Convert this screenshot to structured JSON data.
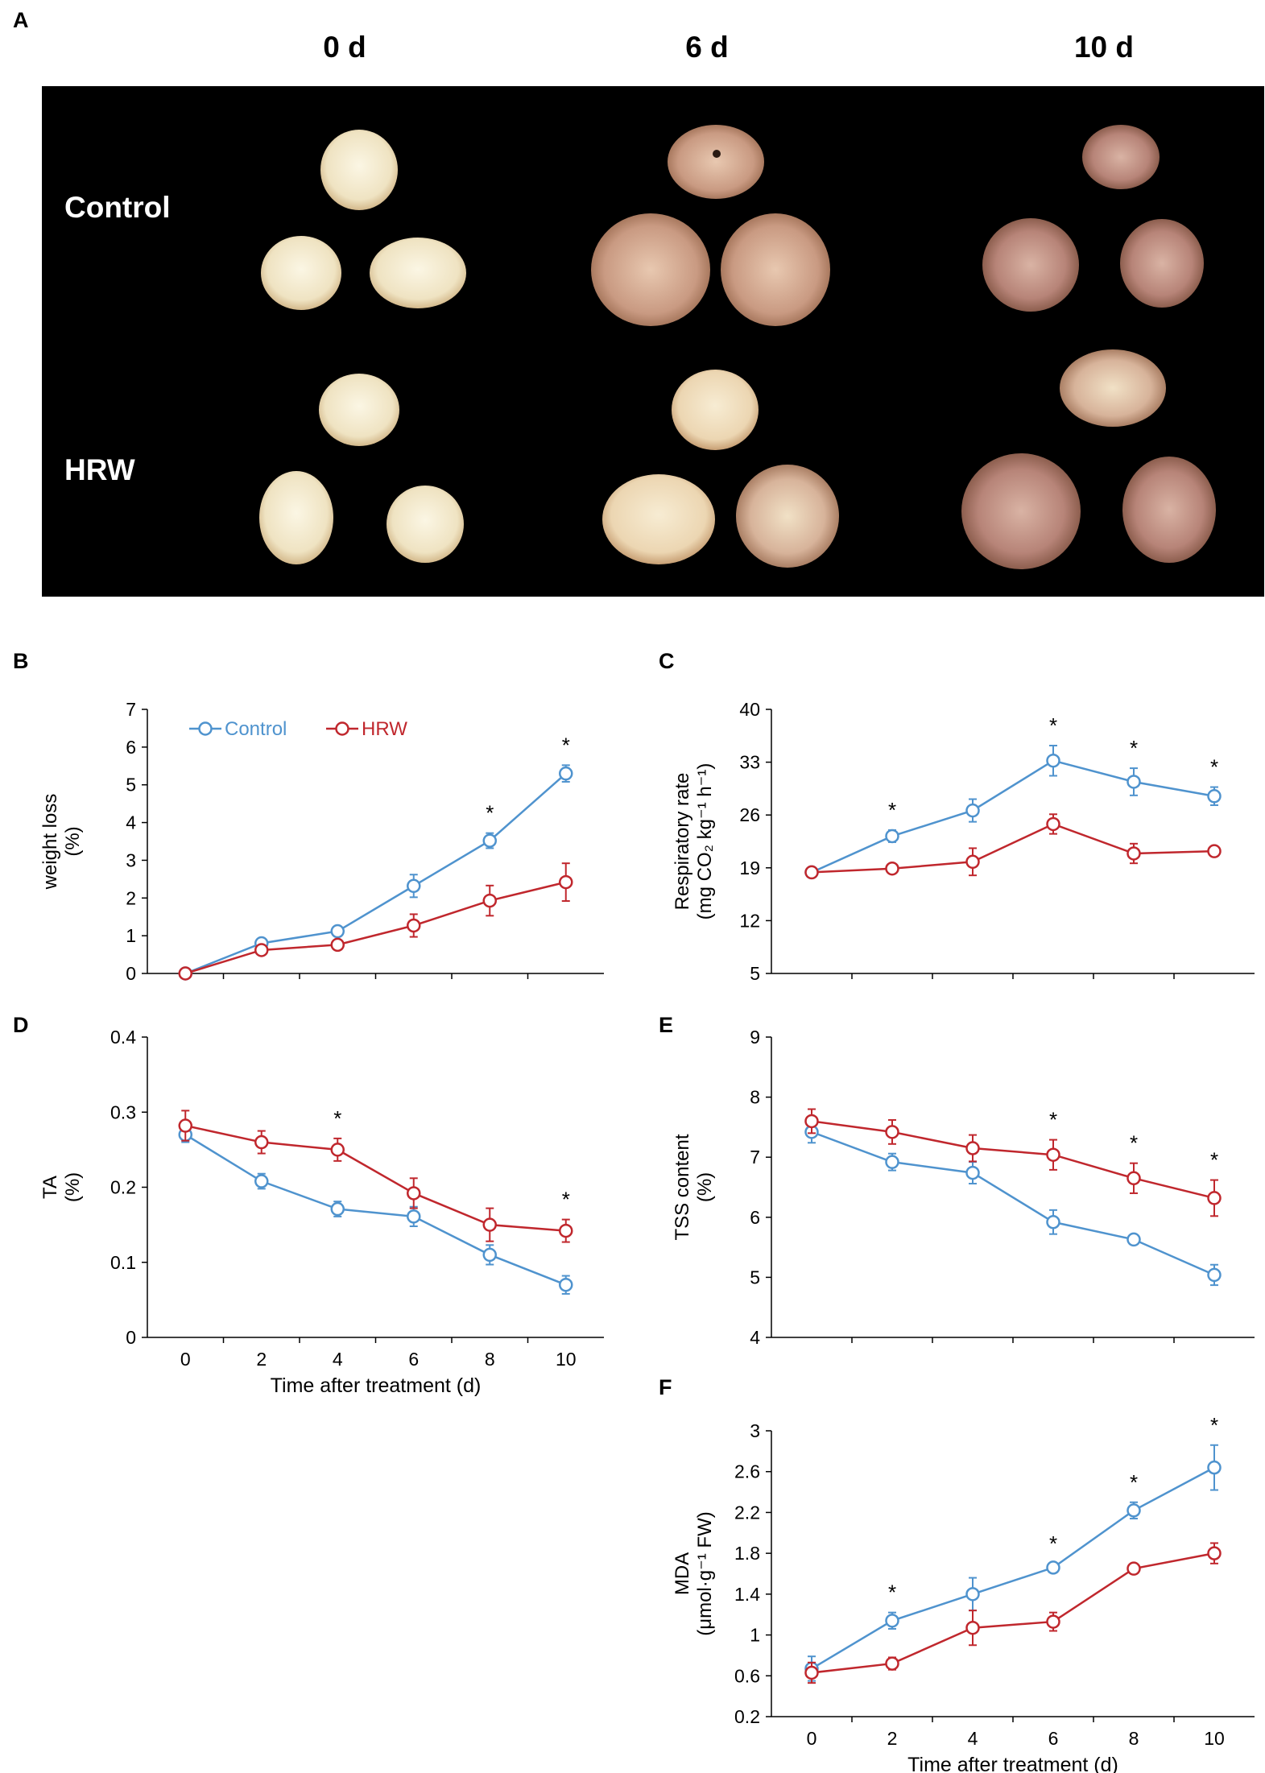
{
  "figure": {
    "panel_a": {
      "letter": "A",
      "column_labels": [
        "0 d",
        "6 d",
        "10 d"
      ],
      "row_labels": [
        "Control",
        "HRW"
      ]
    },
    "colors": {
      "control": "#4F93CE",
      "hrw": "#C0272D",
      "axis": "#000000",
      "photo_bg": "#000000"
    }
  },
  "chart_data": [
    {
      "panel": "B",
      "type": "line",
      "ylabel_lines": [
        "weight loss",
        "(%)"
      ],
      "xlabel": "",
      "show_x_tick_labels": false,
      "x": [
        0,
        2,
        4,
        6,
        8,
        10
      ],
      "xlim": [
        -1,
        11
      ],
      "ylim": [
        0,
        7
      ],
      "yticks": [
        0,
        1,
        2,
        3,
        4,
        5,
        6,
        7
      ],
      "ytick_labels": [
        "0",
        "1",
        "2",
        "3",
        "4",
        "5",
        "6",
        "7"
      ],
      "legend": {
        "placement": "top-left",
        "entries": [
          "Control",
          "HRW"
        ]
      },
      "series": [
        {
          "name": "Control",
          "values": [
            0,
            0.8,
            1.12,
            2.32,
            3.52,
            5.3
          ],
          "errors": [
            0,
            0.05,
            0.12,
            0.3,
            0.2,
            0.22
          ]
        },
        {
          "name": "HRW",
          "values": [
            0,
            0.62,
            0.76,
            1.27,
            1.93,
            2.42
          ],
          "errors": [
            0,
            0.05,
            0.05,
            0.3,
            0.4,
            0.5
          ]
        }
      ],
      "significance": [
        8,
        10
      ]
    },
    {
      "panel": "C",
      "type": "line",
      "ylabel_lines": [
        "Respiratory rate",
        "(mg CO₂ kg⁻¹ h⁻¹)"
      ],
      "xlabel": "",
      "show_x_tick_labels": false,
      "x": [
        0,
        2,
        4,
        6,
        8,
        10
      ],
      "xlim": [
        -1,
        11
      ],
      "ylim": [
        5,
        40
      ],
      "yticks": [
        5,
        12,
        19,
        26,
        33,
        40
      ],
      "ytick_labels": [
        "5",
        "12",
        "19",
        "26",
        "33",
        "40"
      ],
      "series": [
        {
          "name": "Control",
          "values": [
            18.4,
            23.2,
            26.6,
            33.2,
            30.4,
            28.5
          ],
          "errors": [
            0.6,
            0.8,
            1.5,
            2.0,
            1.8,
            1.2
          ]
        },
        {
          "name": "HRW",
          "values": [
            18.4,
            18.9,
            19.8,
            24.8,
            20.9,
            21.2
          ],
          "errors": [
            0.4,
            0.4,
            1.8,
            1.3,
            1.3,
            0.5
          ]
        }
      ],
      "significance": [
        2,
        6,
        8,
        10
      ]
    },
    {
      "panel": "D",
      "type": "line",
      "ylabel_lines": [
        "TA",
        "(%)"
      ],
      "xlabel": "Time after treatment (d)",
      "show_x_tick_labels": true,
      "x": [
        0,
        2,
        4,
        6,
        8,
        10
      ],
      "xlim": [
        -1,
        11
      ],
      "xtick_labels": [
        "0",
        "2",
        "4",
        "6",
        "8",
        "10"
      ],
      "ylim": [
        0,
        0.4
      ],
      "yticks": [
        0,
        0.1,
        0.2,
        0.3,
        0.4
      ],
      "ytick_labels": [
        "0",
        "0.1",
        "0.2",
        "0.3",
        "0.4"
      ],
      "series": [
        {
          "name": "Control",
          "values": [
            0.27,
            0.208,
            0.171,
            0.161,
            0.11,
            0.07
          ],
          "errors": [
            0.01,
            0.01,
            0.01,
            0.013,
            0.013,
            0.012
          ]
        },
        {
          "name": "HRW",
          "values": [
            0.282,
            0.26,
            0.25,
            0.192,
            0.15,
            0.142
          ],
          "errors": [
            0.02,
            0.015,
            0.015,
            0.02,
            0.022,
            0.015
          ]
        }
      ],
      "significance": [
        4,
        10
      ]
    },
    {
      "panel": "E",
      "type": "line",
      "ylabel_lines": [
        "TSS content",
        "(%)"
      ],
      "xlabel": "",
      "show_x_tick_labels": false,
      "x": [
        0,
        2,
        4,
        6,
        8,
        10
      ],
      "xlim": [
        -1,
        11
      ],
      "ylim": [
        4,
        9
      ],
      "yticks": [
        4,
        5,
        6,
        7,
        8,
        9
      ],
      "ytick_labels": [
        "4",
        "5",
        "6",
        "7",
        "8",
        "9"
      ],
      "series": [
        {
          "name": "Control",
          "values": [
            7.42,
            6.92,
            6.74,
            5.92,
            5.63,
            5.04
          ],
          "errors": [
            0.18,
            0.14,
            0.18,
            0.2,
            0.06,
            0.17
          ]
        },
        {
          "name": "HRW",
          "values": [
            7.6,
            7.42,
            7.15,
            7.04,
            6.65,
            6.32
          ],
          "errors": [
            0.2,
            0.2,
            0.22,
            0.25,
            0.25,
            0.3
          ]
        }
      ],
      "significance": [
        6,
        8,
        10
      ]
    },
    {
      "panel": "F",
      "type": "line",
      "ylabel_lines": [
        "MDA",
        "(μmol·g⁻¹ FW)"
      ],
      "xlabel": "Time after treatment (d)",
      "show_x_tick_labels": true,
      "x": [
        0,
        2,
        4,
        6,
        8,
        10
      ],
      "xlim": [
        -1,
        11
      ],
      "xtick_labels": [
        "0",
        "2",
        "4",
        "6",
        "8",
        "10"
      ],
      "ylim": [
        0.2,
        3
      ],
      "yticks": [
        0.2,
        0.6,
        1,
        1.4,
        1.8,
        2.2,
        2.6,
        3
      ],
      "ytick_labels": [
        "0.2",
        "0.6",
        "1",
        "1.4",
        "1.8",
        "2.2",
        "2.6",
        "3"
      ],
      "series": [
        {
          "name": "Control",
          "values": [
            0.67,
            1.14,
            1.4,
            1.66,
            2.22,
            2.64
          ],
          "errors": [
            0.12,
            0.08,
            0.16,
            0.04,
            0.08,
            0.22
          ]
        },
        {
          "name": "HRW",
          "values": [
            0.63,
            0.72,
            1.07,
            1.13,
            1.65,
            1.8
          ],
          "errors": [
            0.1,
            0.06,
            0.17,
            0.09,
            0.04,
            0.1
          ]
        }
      ],
      "significance": [
        2,
        6,
        8,
        10
      ]
    }
  ]
}
